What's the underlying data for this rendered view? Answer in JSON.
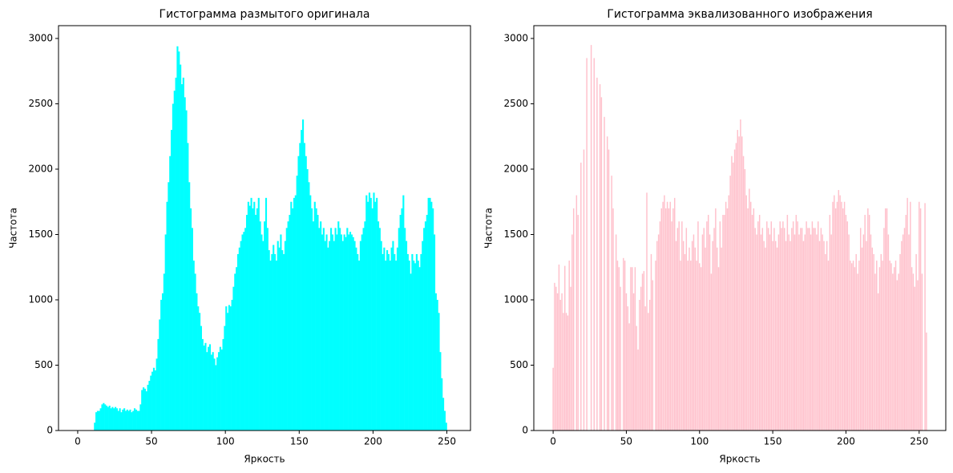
{
  "chart_data": [
    {
      "type": "histogram",
      "title": "Гистограмма размытого оригинала",
      "xlabel": "Яркость",
      "ylabel": "Частота",
      "color": "#00ffff",
      "xlim": [
        -13,
        266
      ],
      "ylim": [
        0,
        3098
      ],
      "xticks": [
        0,
        50,
        100,
        150,
        200,
        250
      ],
      "yticks": [
        0,
        500,
        1000,
        1500,
        2000,
        2500,
        3000
      ],
      "bins": [
        0,
        1,
        2,
        3,
        4,
        5,
        6,
        7,
        8,
        9,
        10,
        11,
        12,
        13,
        14,
        15,
        16,
        17,
        18,
        19,
        20,
        21,
        22,
        23,
        24,
        25,
        26,
        27,
        28,
        29,
        30,
        31,
        32,
        33,
        34,
        35,
        36,
        37,
        38,
        39,
        40,
        41,
        42,
        43,
        44,
        45,
        46,
        47,
        48,
        49,
        50,
        51,
        52,
        53,
        54,
        55,
        56,
        57,
        58,
        59,
        60,
        61,
        62,
        63,
        64,
        65,
        66,
        67,
        68,
        69,
        70,
        71,
        72,
        73,
        74,
        75,
        76,
        77,
        78,
        79,
        80,
        81,
        82,
        83,
        84,
        85,
        86,
        87,
        88,
        89,
        90,
        91,
        92,
        93,
        94,
        95,
        96,
        97,
        98,
        99,
        100,
        101,
        102,
        103,
        104,
        105,
        106,
        107,
        108,
        109,
        110,
        111,
        112,
        113,
        114,
        115,
        116,
        117,
        118,
        119,
        120,
        121,
        122,
        123,
        124,
        125,
        126,
        127,
        128,
        129,
        130,
        131,
        132,
        133,
        134,
        135,
        136,
        137,
        138,
        139,
        140,
        141,
        142,
        143,
        144,
        145,
        146,
        147,
        148,
        149,
        150,
        151,
        152,
        153,
        154,
        155,
        156,
        157,
        158,
        159,
        160,
        161,
        162,
        163,
        164,
        165,
        166,
        167,
        168,
        169,
        170,
        171,
        172,
        173,
        174,
        175,
        176,
        177,
        178,
        179,
        180,
        181,
        182,
        183,
        184,
        185,
        186,
        187,
        188,
        189,
        190,
        191,
        192,
        193,
        194,
        195,
        196,
        197,
        198,
        199,
        200,
        201,
        202,
        203,
        204,
        205,
        206,
        207,
        208,
        209,
        210,
        211,
        212,
        213,
        214,
        215,
        216,
        217,
        218,
        219,
        220,
        221,
        222,
        223,
        224,
        225,
        226,
        227,
        228,
        229,
        230,
        231,
        232,
        233,
        234,
        235,
        236,
        237,
        238,
        239,
        240,
        241,
        242,
        243,
        244,
        245,
        246,
        247,
        248,
        249,
        250,
        251,
        252,
        253,
        254,
        255,
        256
      ],
      "values": [
        0,
        0,
        0,
        0,
        0,
        0,
        0,
        0,
        0,
        0,
        0,
        60,
        140,
        150,
        150,
        170,
        200,
        210,
        200,
        190,
        180,
        190,
        170,
        180,
        170,
        180,
        170,
        150,
        170,
        140,
        160,
        170,
        150,
        160,
        150,
        160,
        140,
        150,
        170,
        160,
        150,
        150,
        200,
        310,
        330,
        320,
        300,
        350,
        380,
        420,
        450,
        480,
        460,
        550,
        700,
        850,
        1000,
        1050,
        1200,
        1500,
        1750,
        1900,
        2100,
        2300,
        2500,
        2600,
        2700,
        2940,
        2900,
        2800,
        2650,
        2700,
        2550,
        2450,
        2200,
        1900,
        1700,
        1550,
        1300,
        1200,
        1050,
        950,
        900,
        800,
        700,
        650,
        670,
        600,
        640,
        660,
        580,
        600,
        550,
        500,
        560,
        600,
        640,
        620,
        700,
        800,
        950,
        900,
        960,
        950,
        1000,
        1100,
        1200,
        1250,
        1350,
        1400,
        1450,
        1500,
        1520,
        1550,
        1650,
        1750,
        1720,
        1780,
        1700,
        1750,
        1650,
        1700,
        1780,
        1600,
        1500,
        1450,
        1600,
        1780,
        1550,
        1380,
        1300,
        1350,
        1420,
        1350,
        1300,
        1450,
        1400,
        1500,
        1380,
        1350,
        1450,
        1550,
        1600,
        1650,
        1750,
        1700,
        1780,
        1800,
        1950,
        2100,
        2200,
        2300,
        2380,
        2200,
        2100,
        2000,
        1900,
        1800,
        1700,
        1600,
        1750,
        1700,
        1650,
        1550,
        1600,
        1500,
        1550,
        1450,
        1500,
        1400,
        1450,
        1550,
        1500,
        1450,
        1550,
        1500,
        1600,
        1550,
        1500,
        1450,
        1500,
        1480,
        1550,
        1500,
        1520,
        1500,
        1480,
        1450,
        1400,
        1350,
        1300,
        1450,
        1500,
        1550,
        1600,
        1800,
        1750,
        1820,
        1780,
        1700,
        1820,
        1750,
        1780,
        1600,
        1550,
        1450,
        1350,
        1400,
        1300,
        1380,
        1350,
        1300,
        1400,
        1450,
        1350,
        1300,
        1400,
        1550,
        1650,
        1700,
        1800,
        1550,
        1450,
        1350,
        1300,
        1200,
        1350,
        1300,
        1280,
        1350,
        1300,
        1250,
        1350,
        1450,
        1550,
        1600,
        1650,
        1780,
        1780,
        1750,
        1700,
        1500,
        1050,
        1000,
        900,
        600,
        400,
        250,
        150,
        60,
        0,
        0,
        0,
        0,
        0,
        0
      ]
    },
    {
      "type": "bar",
      "title": "Гистограмма эквализованного изображения",
      "xlabel": "Яркость",
      "ylabel": "Частота",
      "color": "#ffc0cb",
      "xlim": [
        -13.2,
        268.2
      ],
      "ylim": [
        0,
        3098
      ],
      "xticks": [
        0,
        50,
        100,
        150,
        200,
        250
      ],
      "yticks": [
        0,
        500,
        1000,
        1500,
        2000,
        2500,
        3000
      ],
      "x": [
        0,
        1,
        2,
        3,
        4,
        5,
        6,
        7,
        8,
        9,
        10,
        11,
        12,
        13,
        14,
        15,
        16,
        17,
        18,
        19,
        20,
        21,
        22,
        23,
        24,
        25,
        26,
        27,
        28,
        29,
        30,
        31,
        32,
        33,
        34,
        35,
        36,
        37,
        38,
        39,
        40,
        41,
        42,
        43,
        44,
        45,
        46,
        47,
        48,
        49,
        50,
        51,
        52,
        53,
        54,
        55,
        56,
        57,
        58,
        59,
        60,
        61,
        62,
        63,
        64,
        65,
        66,
        67,
        68,
        69,
        70,
        71,
        72,
        73,
        74,
        75,
        76,
        77,
        78,
        79,
        80,
        81,
        82,
        83,
        84,
        85,
        86,
        87,
        88,
        89,
        90,
        91,
        92,
        93,
        94,
        95,
        96,
        97,
        98,
        99,
        100,
        101,
        102,
        103,
        104,
        105,
        106,
        107,
        108,
        109,
        110,
        111,
        112,
        113,
        114,
        115,
        116,
        117,
        118,
        119,
        120,
        121,
        122,
        123,
        124,
        125,
        126,
        127,
        128,
        129,
        130,
        131,
        132,
        133,
        134,
        135,
        136,
        137,
        138,
        139,
        140,
        141,
        142,
        143,
        144,
        145,
        146,
        147,
        148,
        149,
        150,
        151,
        152,
        153,
        154,
        155,
        156,
        157,
        158,
        159,
        160,
        161,
        162,
        163,
        164,
        165,
        166,
        167,
        168,
        169,
        170,
        171,
        172,
        173,
        174,
        175,
        176,
        177,
        178,
        179,
        180,
        181,
        182,
        183,
        184,
        185,
        186,
        187,
        188,
        189,
        190,
        191,
        192,
        193,
        194,
        195,
        196,
        197,
        198,
        199,
        200,
        201,
        202,
        203,
        204,
        205,
        206,
        207,
        208,
        209,
        210,
        211,
        212,
        213,
        214,
        215,
        216,
        217,
        218,
        219,
        220,
        221,
        222,
        223,
        224,
        225,
        226,
        227,
        228,
        229,
        230,
        231,
        232,
        233,
        234,
        235,
        236,
        237,
        238,
        239,
        240,
        241,
        242,
        243,
        244,
        245,
        246,
        247,
        248,
        249,
        250,
        251,
        252,
        253,
        254,
        255
      ],
      "values": [
        480,
        1130,
        1100,
        1050,
        1270,
        1000,
        1050,
        900,
        1260,
        900,
        880,
        1300,
        1100,
        1500,
        1700,
        0,
        1800,
        1650,
        0,
        2050,
        0,
        2150,
        0,
        2850,
        0,
        0,
        2950,
        0,
        2850,
        0,
        2700,
        0,
        2650,
        2550,
        0,
        2400,
        0,
        2250,
        2150,
        0,
        1950,
        1700,
        0,
        1500,
        1300,
        1250,
        1100,
        0,
        1320,
        1300,
        1050,
        950,
        820,
        1250,
        1250,
        1050,
        1250,
        800,
        620,
        1000,
        1100,
        1200,
        1220,
        950,
        1820,
        900,
        1000,
        1350,
        1150,
        0,
        1300,
        1450,
        1500,
        1600,
        1700,
        1750,
        1800,
        1700,
        1750,
        1700,
        1750,
        1600,
        1700,
        1780,
        1450,
        1550,
        1600,
        1300,
        1600,
        1450,
        1350,
        1550,
        1300,
        1400,
        1300,
        1450,
        1500,
        1400,
        1300,
        1600,
        1280,
        1250,
        1500,
        1550,
        1400,
        1600,
        1650,
        1500,
        1200,
        1450,
        1550,
        1700,
        1400,
        1250,
        1600,
        1400,
        1650,
        1650,
        1750,
        1700,
        1800,
        1950,
        2100,
        2050,
        2150,
        2200,
        2300,
        2250,
        2380,
        2250,
        2100,
        2000,
        1800,
        1700,
        1850,
        1750,
        1650,
        1700,
        1550,
        1500,
        1600,
        1650,
        1500,
        1550,
        1450,
        1400,
        1600,
        1550,
        1500,
        1600,
        1450,
        1550,
        1450,
        1400,
        1500,
        1600,
        1550,
        1600,
        1550,
        1450,
        1650,
        1500,
        1450,
        1550,
        1600,
        1500,
        1650,
        1600,
        1500,
        1550,
        1550,
        1450,
        1500,
        1600,
        1550,
        1550,
        1500,
        1600,
        1550,
        1550,
        1500,
        1600,
        1450,
        1550,
        1500,
        1450,
        1350,
        1450,
        1300,
        1650,
        1500,
        1750,
        1800,
        1700,
        1750,
        1840,
        1800,
        1750,
        1700,
        1750,
        1650,
        1600,
        1500,
        1300,
        1280,
        1300,
        1250,
        1350,
        1200,
        1300,
        1550,
        1400,
        1500,
        1650,
        1450,
        1700,
        1650,
        1500,
        1400,
        1350,
        1200,
        1300,
        1050,
        1250,
        1350,
        1300,
        1550,
        1700,
        1700,
        1500,
        1300,
        1280,
        1200,
        1250,
        1300,
        1150,
        1200,
        1350,
        1450,
        1500,
        1550,
        1650,
        1780,
        1500,
        1750,
        1250,
        1200,
        1100,
        1350,
        1150,
        1750,
        1700,
        1200,
        0,
        1740,
        750
      ]
    }
  ]
}
